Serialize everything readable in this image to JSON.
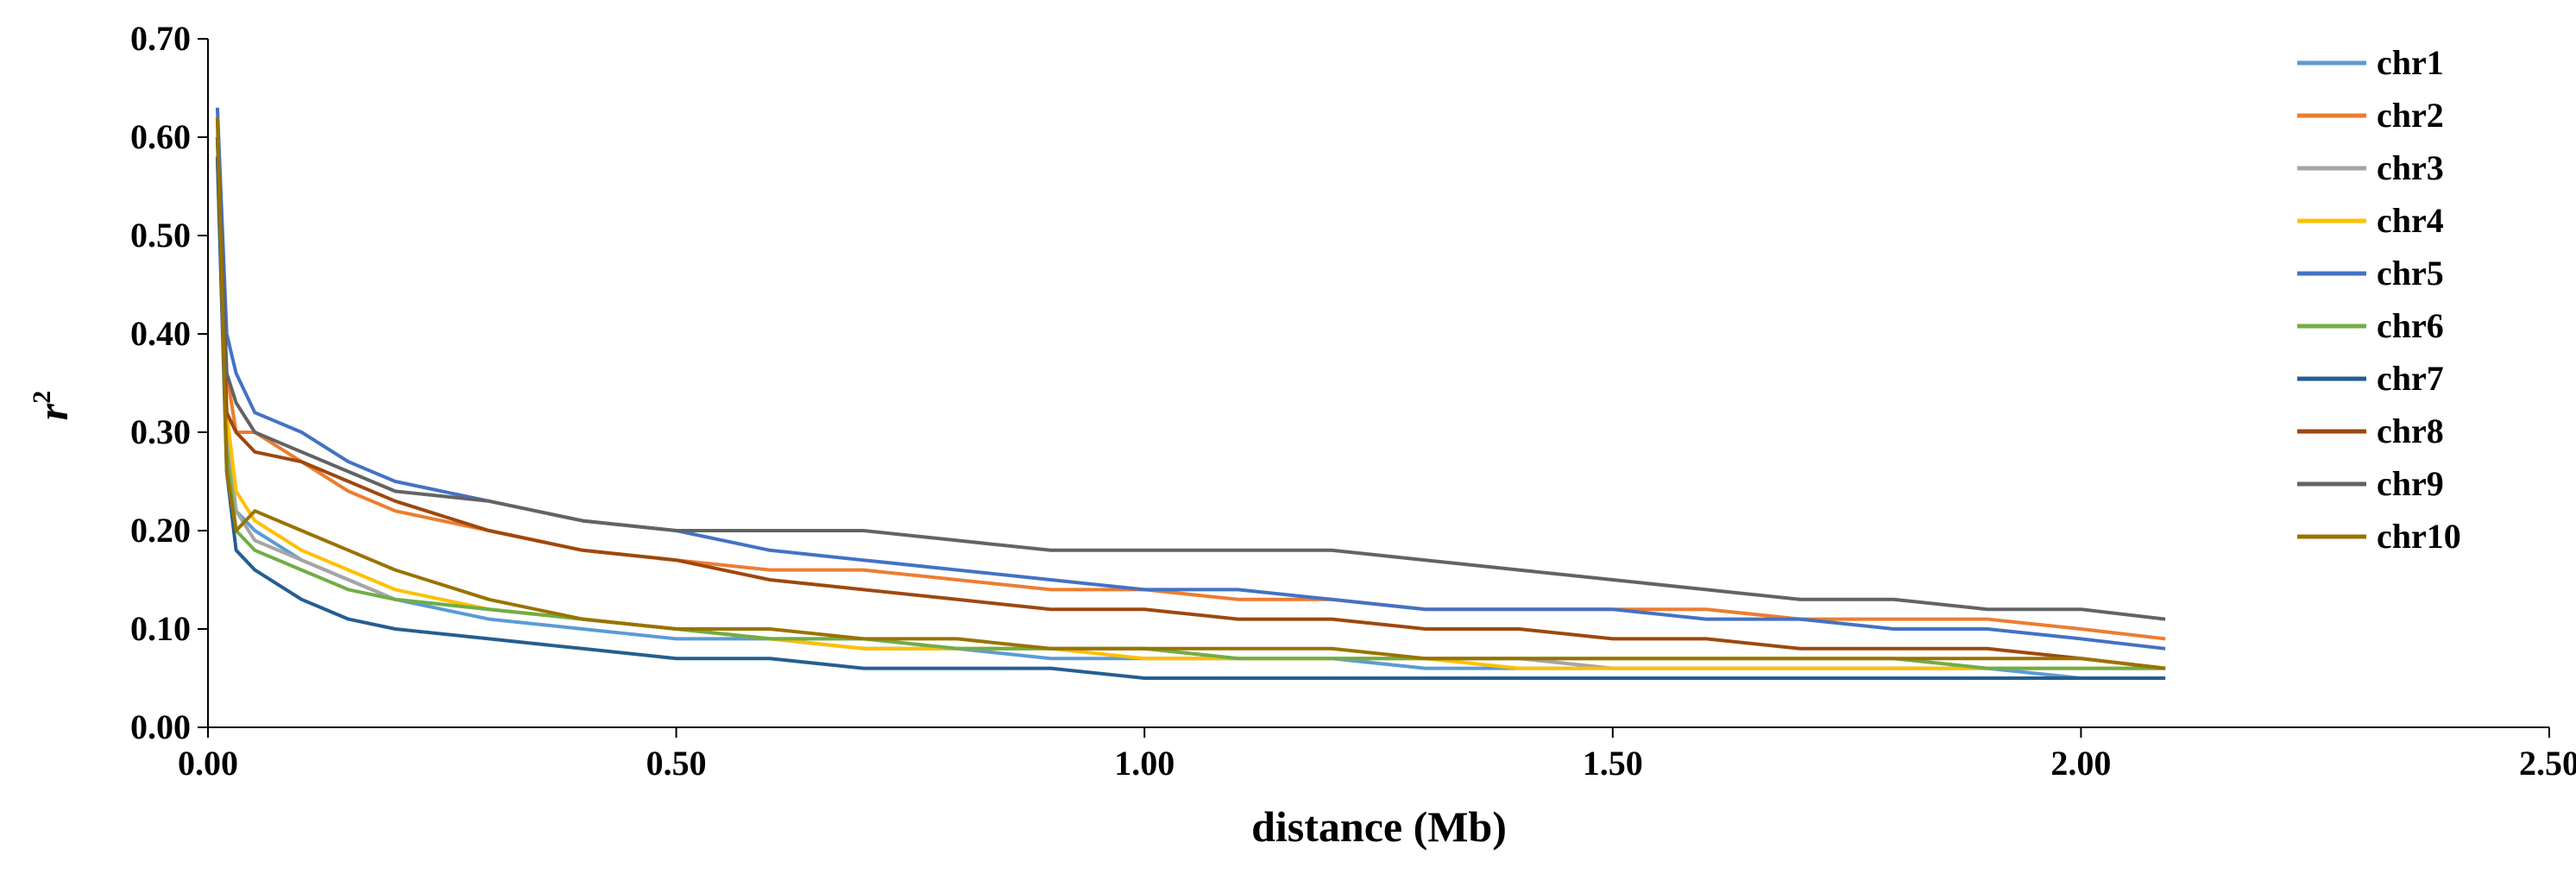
{
  "chart_data": {
    "type": "line",
    "title": "",
    "xlabel": "distance (Mb)",
    "ylabel": "r",
    "ylabel_superscript": "2",
    "xlim": [
      0,
      2.5
    ],
    "ylim": [
      0,
      0.7
    ],
    "x_ticks": [
      "0.00",
      "0.50",
      "1.00",
      "1.50",
      "2.00",
      "2.50"
    ],
    "y_ticks": [
      "0.00",
      "0.10",
      "0.20",
      "0.30",
      "0.40",
      "0.50",
      "0.60",
      "0.70"
    ],
    "grid": false,
    "legend_position": "top-right",
    "x": [
      0.01,
      0.02,
      0.03,
      0.05,
      0.1,
      0.15,
      0.2,
      0.3,
      0.4,
      0.5,
      0.6,
      0.7,
      0.8,
      0.9,
      1.0,
      1.1,
      1.2,
      1.3,
      1.4,
      1.5,
      1.6,
      1.7,
      1.8,
      1.9,
      2.0,
      2.09
    ],
    "series": [
      {
        "name": "chr1",
        "color": "#5B9BD5",
        "values": [
          0.62,
          0.3,
          0.22,
          0.2,
          0.17,
          0.15,
          0.13,
          0.11,
          0.1,
          0.09,
          0.09,
          0.08,
          0.08,
          0.07,
          0.07,
          0.07,
          0.07,
          0.06,
          0.06,
          0.06,
          0.06,
          0.06,
          0.06,
          0.06,
          0.05,
          0.05
        ]
      },
      {
        "name": "chr2",
        "color": "#ED7D31",
        "values": [
          0.6,
          0.36,
          0.3,
          0.3,
          0.27,
          0.24,
          0.22,
          0.2,
          0.18,
          0.17,
          0.16,
          0.16,
          0.15,
          0.14,
          0.14,
          0.13,
          0.13,
          0.12,
          0.12,
          0.12,
          0.12,
          0.11,
          0.11,
          0.11,
          0.1,
          0.09
        ]
      },
      {
        "name": "chr3",
        "color": "#A5A5A5",
        "values": [
          0.6,
          0.3,
          0.22,
          0.19,
          0.17,
          0.15,
          0.13,
          0.12,
          0.11,
          0.1,
          0.09,
          0.09,
          0.08,
          0.08,
          0.08,
          0.07,
          0.07,
          0.07,
          0.07,
          0.06,
          0.06,
          0.06,
          0.06,
          0.06,
          0.06,
          0.06
        ]
      },
      {
        "name": "chr4",
        "color": "#FFC000",
        "values": [
          0.6,
          0.32,
          0.24,
          0.21,
          0.18,
          0.16,
          0.14,
          0.12,
          0.11,
          0.1,
          0.09,
          0.08,
          0.08,
          0.08,
          0.07,
          0.07,
          0.07,
          0.07,
          0.06,
          0.06,
          0.06,
          0.06,
          0.06,
          0.06,
          0.06,
          0.06
        ]
      },
      {
        "name": "chr5",
        "color": "#4472C4",
        "values": [
          0.63,
          0.4,
          0.36,
          0.32,
          0.3,
          0.27,
          0.25,
          0.23,
          0.21,
          0.2,
          0.18,
          0.17,
          0.16,
          0.15,
          0.14,
          0.14,
          0.13,
          0.12,
          0.12,
          0.12,
          0.11,
          0.11,
          0.1,
          0.1,
          0.09,
          0.08
        ]
      },
      {
        "name": "chr6",
        "color": "#70AD47",
        "values": [
          0.58,
          0.28,
          0.2,
          0.18,
          0.16,
          0.14,
          0.13,
          0.12,
          0.11,
          0.1,
          0.09,
          0.09,
          0.08,
          0.08,
          0.08,
          0.07,
          0.07,
          0.07,
          0.07,
          0.07,
          0.07,
          0.07,
          0.07,
          0.06,
          0.06,
          0.06
        ]
      },
      {
        "name": "chr7",
        "color": "#255E91",
        "values": [
          0.58,
          0.26,
          0.18,
          0.16,
          0.13,
          0.11,
          0.1,
          0.09,
          0.08,
          0.07,
          0.07,
          0.06,
          0.06,
          0.06,
          0.05,
          0.05,
          0.05,
          0.05,
          0.05,
          0.05,
          0.05,
          0.05,
          0.05,
          0.05,
          0.05,
          0.05
        ]
      },
      {
        "name": "chr8",
        "color": "#9E480E",
        "values": [
          0.6,
          0.32,
          0.3,
          0.28,
          0.27,
          0.25,
          0.23,
          0.2,
          0.18,
          0.17,
          0.15,
          0.14,
          0.13,
          0.12,
          0.12,
          0.11,
          0.11,
          0.1,
          0.1,
          0.09,
          0.09,
          0.08,
          0.08,
          0.08,
          0.07,
          0.06
        ]
      },
      {
        "name": "chr9",
        "color": "#636363",
        "values": [
          0.6,
          0.36,
          0.33,
          0.3,
          0.28,
          0.26,
          0.24,
          0.23,
          0.21,
          0.2,
          0.2,
          0.2,
          0.19,
          0.18,
          0.18,
          0.18,
          0.18,
          0.17,
          0.16,
          0.15,
          0.14,
          0.13,
          0.13,
          0.12,
          0.12,
          0.11
        ]
      },
      {
        "name": "chr10",
        "color": "#997300",
        "values": [
          0.62,
          0.26,
          0.2,
          0.22,
          0.2,
          0.18,
          0.16,
          0.13,
          0.11,
          0.1,
          0.1,
          0.09,
          0.09,
          0.08,
          0.08,
          0.08,
          0.08,
          0.07,
          0.07,
          0.07,
          0.07,
          0.07,
          0.07,
          0.07,
          0.07,
          0.06
        ]
      }
    ]
  }
}
